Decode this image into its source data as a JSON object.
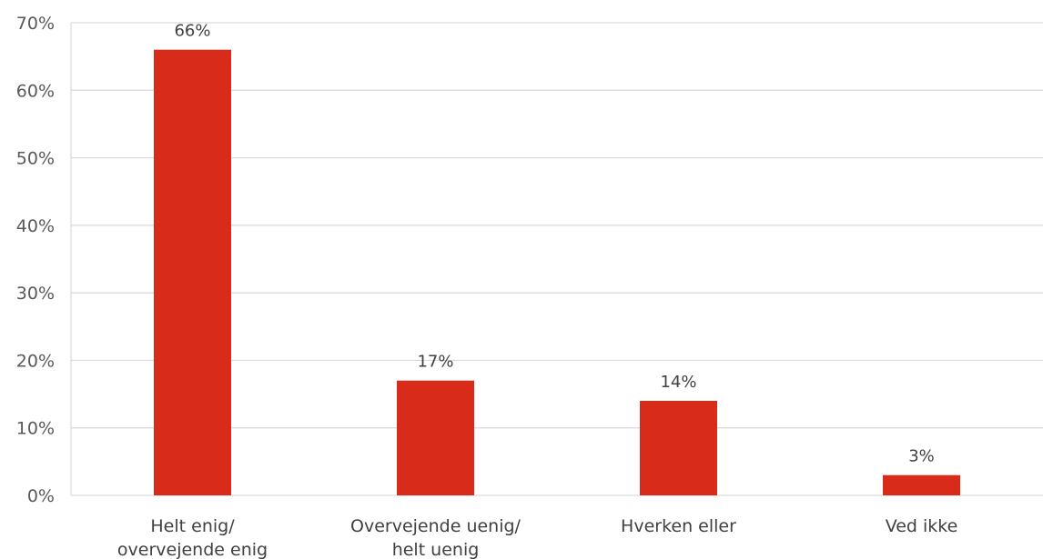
{
  "chart_data": {
    "type": "bar",
    "categories": [
      [
        "Helt enig/",
        "overvejende enig"
      ],
      [
        "Overvejende uenig/",
        "helt uenig"
      ],
      [
        "Hverken eller"
      ],
      [
        "Ved ikke"
      ]
    ],
    "values": [
      66,
      17,
      14,
      3
    ],
    "data_labels": [
      "66%",
      "17%",
      "14%",
      "3%"
    ],
    "yticks": [
      0,
      10,
      20,
      30,
      40,
      50,
      60,
      70
    ],
    "ytick_labels": [
      "0%",
      "10%",
      "20%",
      "30%",
      "40%",
      "50%",
      "60%",
      "70%"
    ],
    "ylim": [
      0,
      70
    ],
    "grid": true,
    "bar_color": "#d92b1a",
    "gridline_color": "#d9d9d9"
  }
}
